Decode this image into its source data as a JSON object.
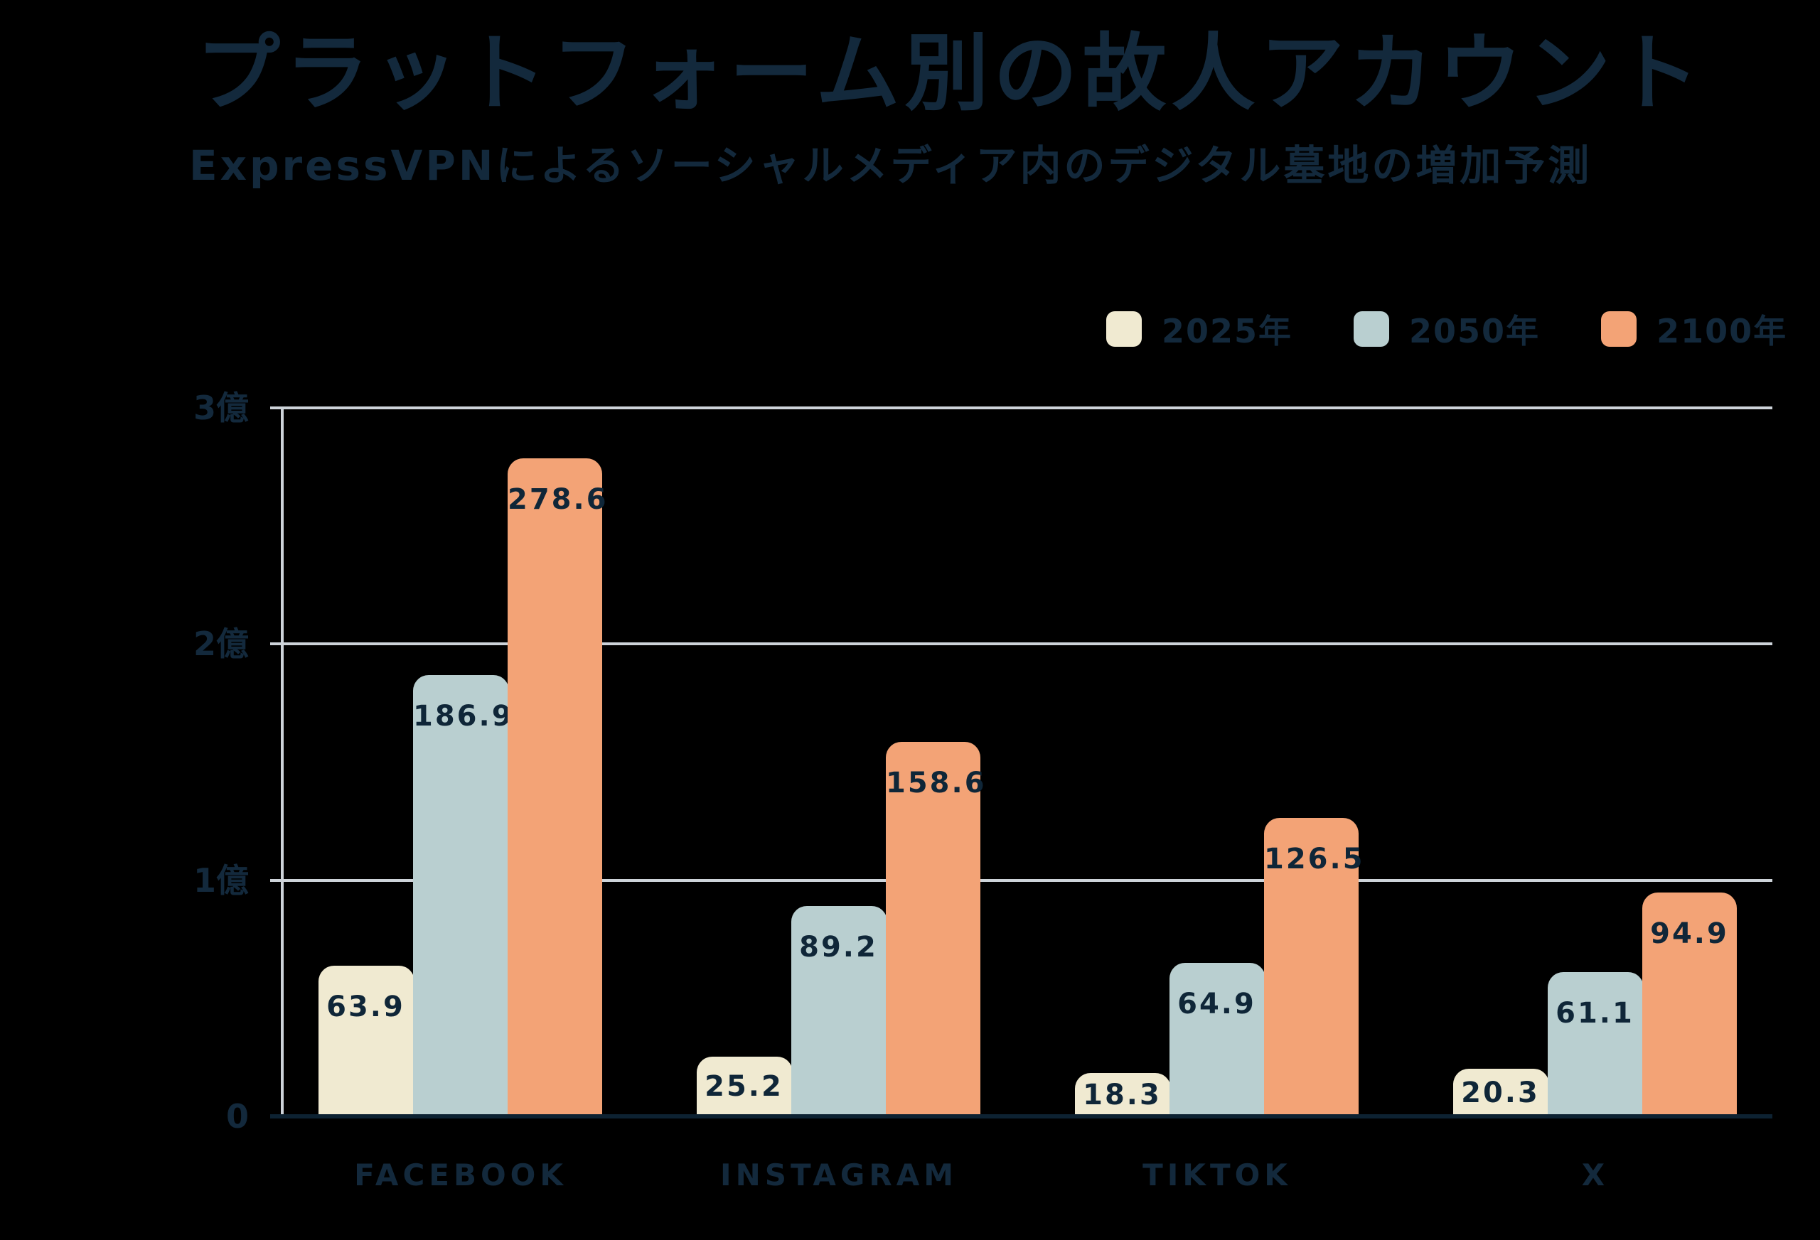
{
  "page": {
    "background_color": "#000000",
    "text_color": "#13293c"
  },
  "header": {
    "title": "プラットフォーム別の故人アカウント",
    "subtitle": "ExpressVPNによるソーシャルメディア内のデジタル墓地の増加予測"
  },
  "chart_data": {
    "type": "bar",
    "categories": [
      "FACEBOOK",
      "INSTAGRAM",
      "TIKTOK",
      "X"
    ],
    "series": [
      {
        "name": "2025年",
        "color": "#f0ead1",
        "values": [
          63.9,
          25.2,
          18.3,
          20.3
        ]
      },
      {
        "name": "2050年",
        "color": "#b9cfd0",
        "values": [
          186.9,
          89.2,
          64.9,
          61.1
        ]
      },
      {
        "name": "2100年",
        "color": "#f3a376",
        "values": [
          278.6,
          158.6,
          126.5,
          94.9
        ]
      }
    ],
    "y_axis": {
      "ticks": [
        {
          "value": 300,
          "label": "3億"
        },
        {
          "value": 200,
          "label": "2億"
        },
        {
          "value": 100,
          "label": "1億"
        },
        {
          "value": 0,
          "label": "0"
        }
      ],
      "max": 300
    },
    "ylim": [
      0,
      300
    ],
    "grid": true,
    "value_labels": true,
    "legend_position": "top-right",
    "colors": {
      "grid": "#cdd3d9",
      "axis": "#cdd3d9",
      "baseline": "#0d2232",
      "label": "#13293c"
    }
  }
}
